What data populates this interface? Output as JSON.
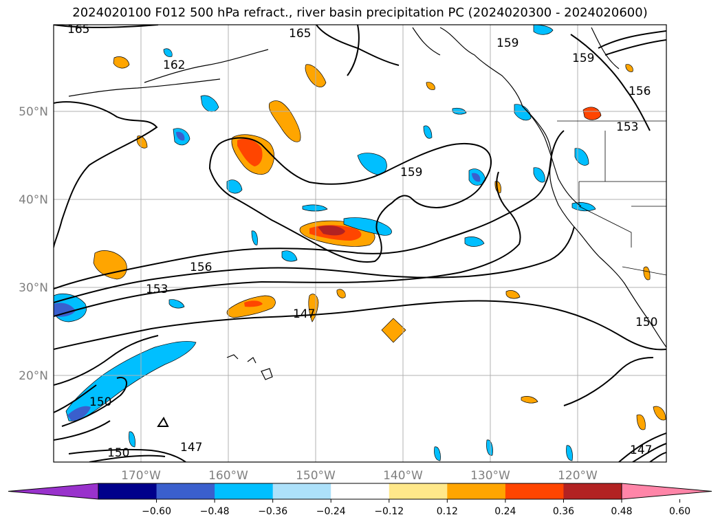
{
  "title": "2024020100 F012 500 hPa refract., river basin precipitation PC (2024020300 - 2024020600)",
  "map": {
    "lat_ticks": [
      "50°N",
      "40°N",
      "30°N",
      "20°N"
    ],
    "lon_ticks": [
      "170°W",
      "160°W",
      "150°W",
      "140°W",
      "130°W",
      "120°W"
    ],
    "contour_labels": [
      "165",
      "165",
      "162",
      "159",
      "159",
      "156",
      "153",
      "159",
      "156",
      "153",
      "147",
      "150",
      "150",
      "147",
      "147",
      "150"
    ],
    "grid": true
  },
  "colorbar": {
    "ticks": [
      "−0.60",
      "−0.48",
      "−0.36",
      "−0.24",
      "−0.12",
      "0.12",
      "0.24",
      "0.36",
      "0.48",
      "0.60"
    ],
    "colors": [
      "#9932CC",
      "#00008B",
      "#3A5FCD",
      "#00BFFF",
      "#ADE1FA",
      "#FFFFFF",
      "#FFE88A",
      "#FFA500",
      "#FF4500",
      "#B22222",
      "#FF85A8"
    ]
  }
}
